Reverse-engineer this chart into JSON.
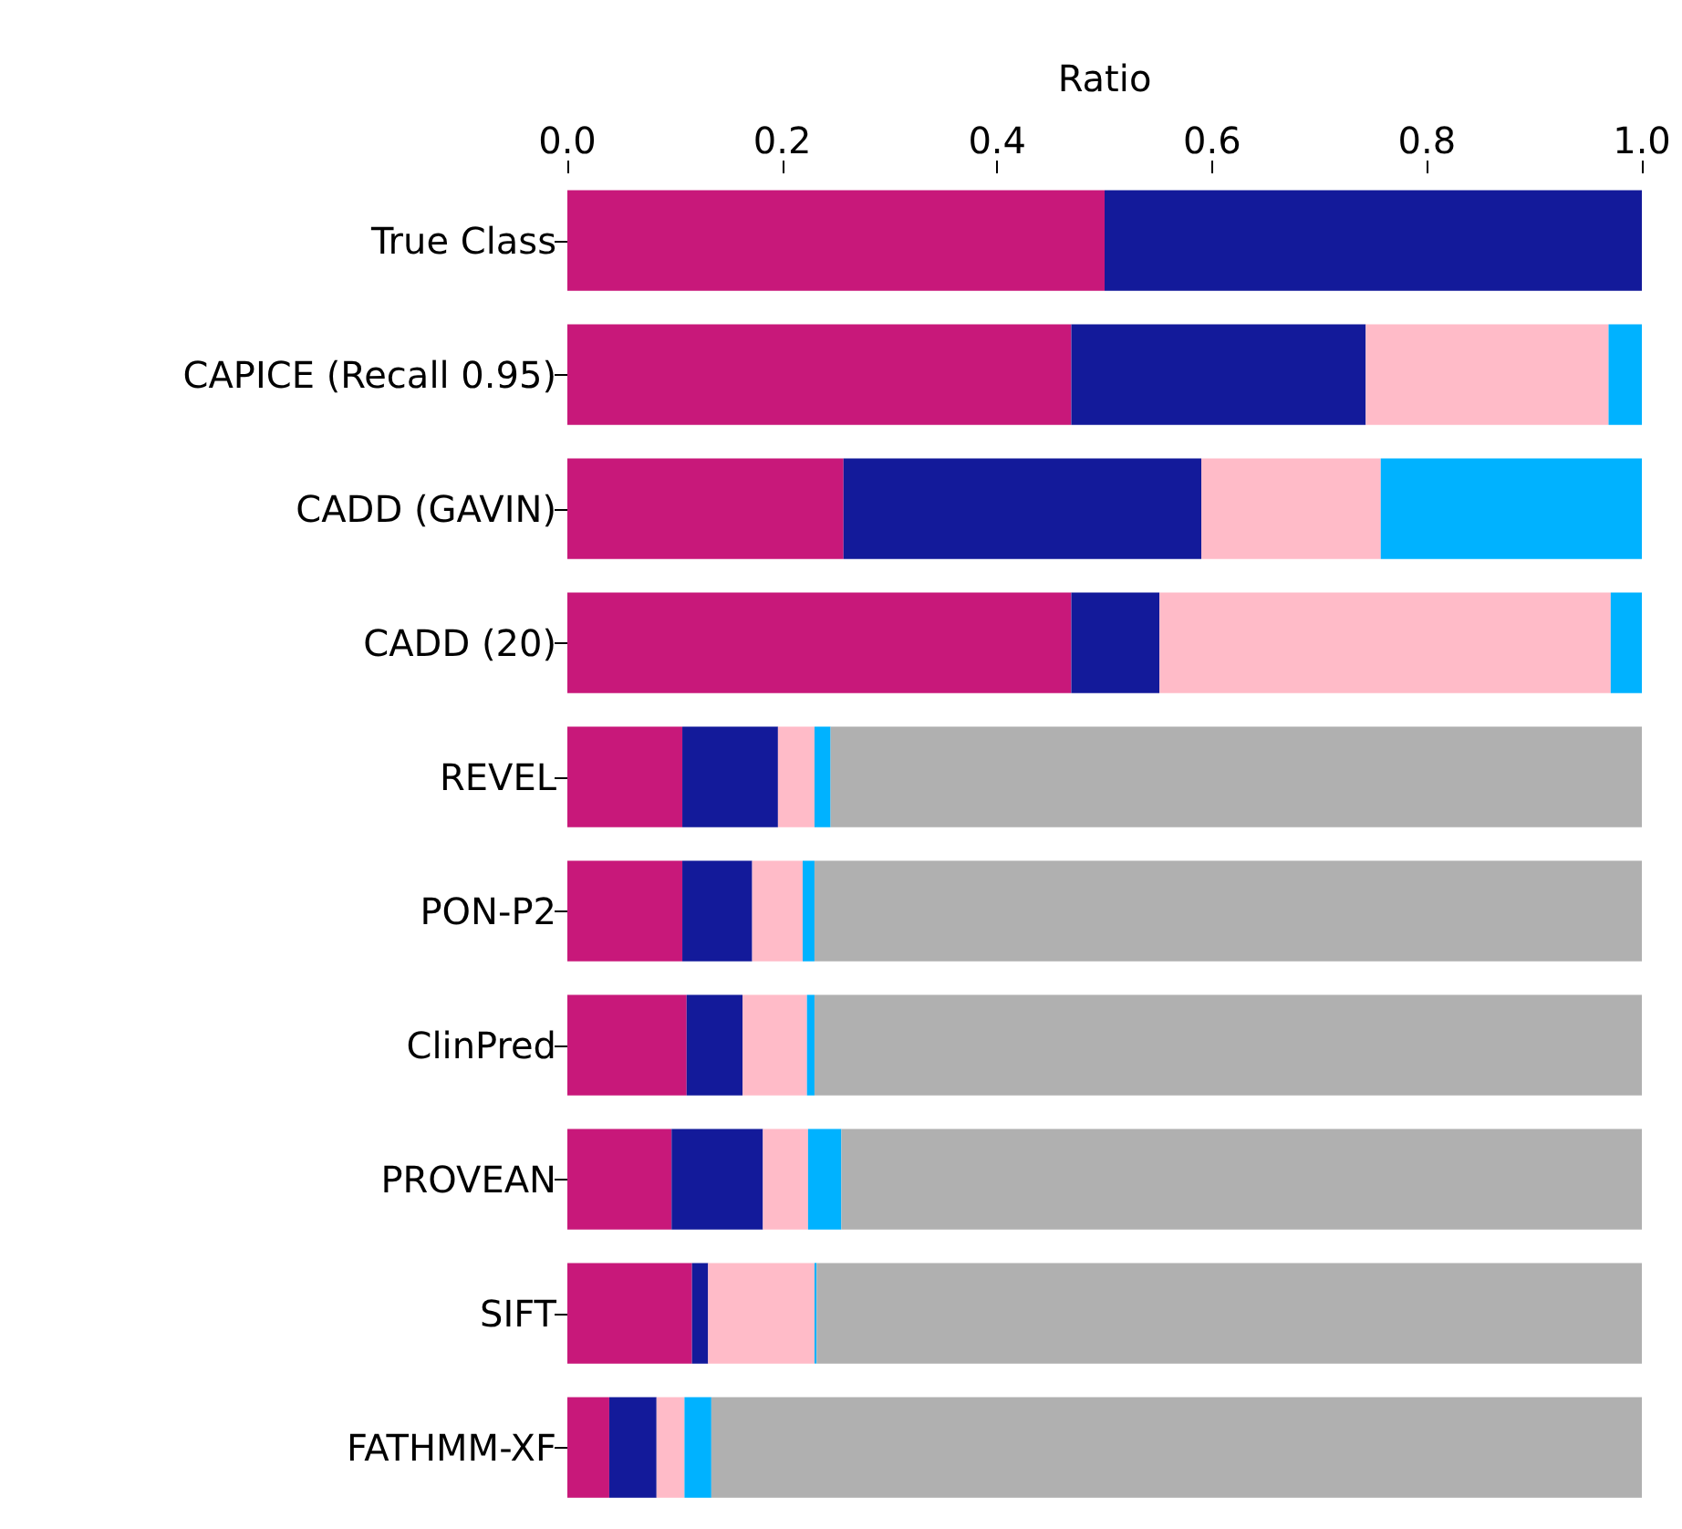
{
  "chart_data": {
    "type": "bar",
    "orientation": "horizontal",
    "stacked": true,
    "xlabel": "Ratio",
    "categories": [
      "True Class",
      "CAPICE (Recall 0.95)",
      "CADD (GAVIN)",
      "CADD (20)",
      "REVEL",
      "PON-P2",
      "ClinPred",
      "PROVEAN",
      "SIFT",
      "FATHMM-XF"
    ],
    "series": [
      {
        "color": "#c8187a",
        "values": [
          0.5,
          0.469,
          0.257,
          0.469,
          0.107,
          0.107,
          0.111,
          0.097,
          0.116,
          0.039
        ]
      },
      {
        "color": "#131a9a",
        "values": [
          0.5,
          0.274,
          0.333,
          0.082,
          0.089,
          0.065,
          0.052,
          0.085,
          0.015,
          0.044
        ]
      },
      {
        "color": "#ffbbc8",
        "values": [
          0,
          0.226,
          0.167,
          0.42,
          0.034,
          0.047,
          0.06,
          0.042,
          0.099,
          0.026
        ]
      },
      {
        "color": "#00b2ff",
        "values": [
          0,
          0.031,
          0.243,
          0.029,
          0.015,
          0.011,
          0.007,
          0.031,
          0.002,
          0.025
        ]
      },
      {
        "color": "#b0b0b0",
        "values": [
          0,
          0,
          0,
          0,
          0.755,
          0.77,
          0.77,
          0.745,
          0.769,
          0.866
        ]
      }
    ],
    "xlim": [
      0,
      1
    ],
    "xticks": [
      {
        "value": 0,
        "label": "0.0"
      },
      0.2,
      0.4,
      0.6,
      0.8,
      {
        "value": 1,
        "label": "1.0"
      }
    ],
    "grid": false
  }
}
